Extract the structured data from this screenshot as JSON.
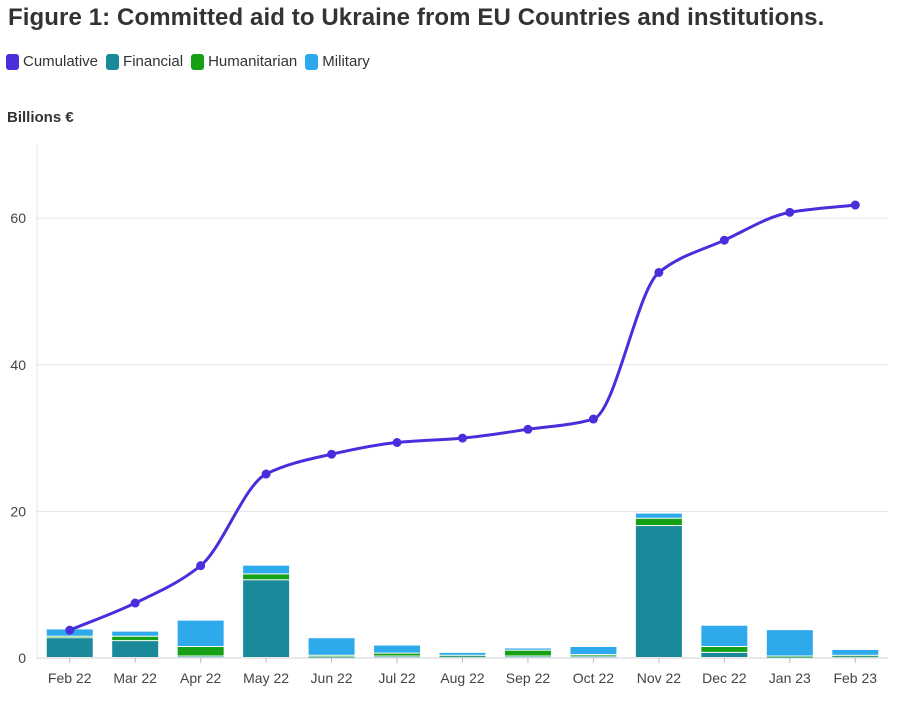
{
  "chart_data": {
    "type": "bar",
    "title": "Figure 1: Committed aid to Ukraine from EU Countries and institutions.",
    "ylabel": "Billions €",
    "xlabel": "",
    "ylim": [
      0,
      70
    ],
    "yticks": [
      0,
      20,
      40,
      60
    ],
    "categories": [
      "Feb 22",
      "Mar 22",
      "Apr 22",
      "May 22",
      "Jun 22",
      "Jul 22",
      "Aug 22",
      "Sep 22",
      "Oct 22",
      "Nov 22",
      "Dec 22",
      "Jan 23",
      "Feb 23"
    ],
    "series": [
      {
        "name": "Financial",
        "type": "bar",
        "color": "#1a8a9a",
        "values": [
          2.7,
          2.3,
          0.2,
          10.6,
          0.1,
          0.2,
          0.2,
          0.2,
          0.2,
          18.0,
          0.7,
          0.1,
          0.2
        ]
      },
      {
        "name": "Humanitarian",
        "type": "bar",
        "color": "#16a016",
        "values": [
          0.2,
          0.6,
          1.3,
          0.8,
          0.2,
          0.4,
          0.1,
          0.8,
          0.2,
          1.0,
          0.8,
          0.1,
          0.1
        ]
      },
      {
        "name": "Military",
        "type": "bar",
        "color": "#2eaaec",
        "values": [
          1.0,
          0.7,
          3.6,
          1.2,
          2.4,
          1.1,
          0.4,
          0.3,
          1.1,
          0.7,
          2.9,
          3.6,
          0.8
        ]
      },
      {
        "name": "Cumulative",
        "type": "line",
        "color": "#4a2edc",
        "values": [
          3.8,
          7.5,
          12.6,
          25.1,
          27.8,
          29.4,
          30.0,
          31.2,
          32.6,
          52.6,
          57.0,
          60.8,
          61.8
        ]
      }
    ],
    "legend_position": "top-left",
    "grid": true
  }
}
